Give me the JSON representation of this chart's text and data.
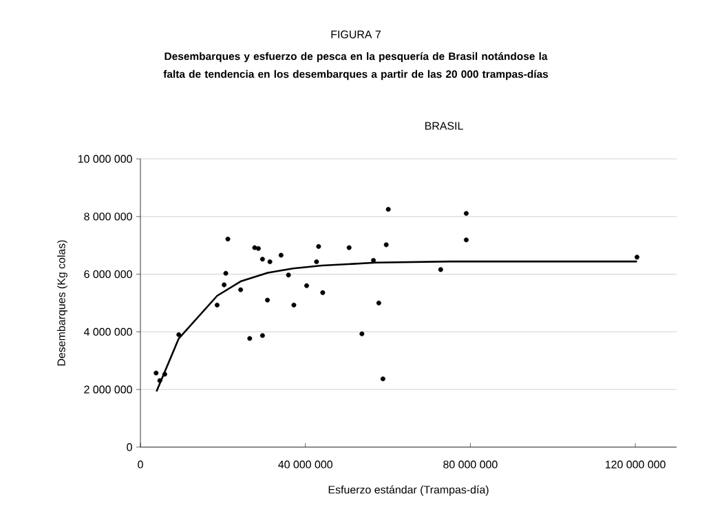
{
  "chart_data": {
    "type": "scatter",
    "title": "FIGURA 7",
    "subtitle": "Desembarques y esfuerzo de pesca en la pesquería de Brasil notándose la falta de tendencia en los desembarques a partir de las 20 000 trampas-días",
    "annotations": [
      "BRASIL"
    ],
    "xlabel": "Esfuerzo estándar (Trampas-día)",
    "ylabel": "Desembarques (Kg colas)",
    "xlim": [
      0,
      130000000
    ],
    "ylim": [
      0,
      10000000
    ],
    "xticks": [
      0,
      {
        "value": 40000000,
        "label": "40 000 000"
      },
      {
        "value": 80000000,
        "label": "80 000 000"
      },
      {
        "value": 120000000,
        "label": "120 000 000"
      }
    ],
    "yticks": [
      0,
      {
        "value": 2000000,
        "label": "2 000 000"
      },
      {
        "value": 4000000,
        "label": "4 000 000"
      },
      {
        "value": 6000000,
        "label": "6 000 000"
      },
      {
        "value": 8000000,
        "label": "8 000 000"
      },
      {
        "value": 10000000,
        "label": "10 000 000"
      }
    ],
    "grid": "y",
    "series": [
      {
        "type": "scatter",
        "marker": "circle",
        "color": "#000000",
        "x": [
          3800000,
          4700000,
          5900000,
          9300000,
          18600000,
          20300000,
          20700000,
          21200000,
          24300000,
          26500000,
          27700000,
          28600000,
          29600000,
          29600000,
          30800000,
          31400000,
          34100000,
          35900000,
          37200000,
          40300000,
          42700000,
          43200000,
          44200000,
          50600000,
          53700000,
          56500000,
          57800000,
          58800000,
          59600000,
          60100000,
          72800000,
          79000000,
          79000000,
          120400000
        ],
        "values": [
          2570000,
          2310000,
          2530000,
          3900000,
          4930000,
          5630000,
          6030000,
          7220000,
          5460000,
          3770000,
          6920000,
          6890000,
          6520000,
          3870000,
          5100000,
          6430000,
          6660000,
          5970000,
          4930000,
          5600000,
          6430000,
          6960000,
          5360000,
          6920000,
          3930000,
          6480000,
          5000000,
          2370000,
          7020000,
          8250000,
          6160000,
          8110000,
          7190000,
          6590000
        ]
      },
      {
        "type": "line",
        "marker": "none",
        "color": "#000000",
        "x": [
          3900000,
          9300000,
          18600000,
          24300000,
          30900000,
          37000000,
          44000000,
          57000000,
          75000000,
          120400000
        ],
        "values": [
          1930000,
          3770000,
          5250000,
          5750000,
          6050000,
          6200000,
          6300000,
          6400000,
          6440000,
          6440000
        ]
      }
    ]
  }
}
